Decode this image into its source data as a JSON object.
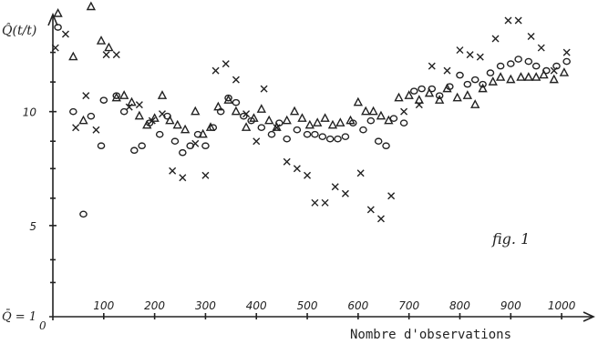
{
  "chart_data": {
    "type": "scatter",
    "ylabel": "Q̂(t/t)",
    "xlabel": "Nombre d'observations",
    "annotation": "fig. 1",
    "origin_label": "0",
    "ybase_label": "Q̄ = 1",
    "xlim": [
      0,
      1050
    ],
    "ylim": [
      1,
      14.5
    ],
    "x_ticks": [
      100,
      200,
      300,
      400,
      500,
      600,
      700,
      800,
      900,
      1000
    ],
    "x_tick_labels": [
      "100",
      "200",
      "300",
      "400",
      "500",
      "600",
      "700",
      "800",
      "900",
      "1000"
    ],
    "y_ticks": [
      5,
      10
    ],
    "y_tick_labels": [
      "5",
      "10"
    ],
    "grid": false,
    "legend": "none",
    "series": [
      {
        "marker": "circle",
        "points": [
          [
            10,
            13.7
          ],
          [
            40,
            10.0
          ],
          [
            60,
            5.5
          ],
          [
            75,
            9.8
          ],
          [
            95,
            8.5
          ],
          [
            100,
            10.5
          ],
          [
            125,
            10.7
          ],
          [
            140,
            10.0
          ],
          [
            160,
            8.3
          ],
          [
            175,
            8.5
          ],
          [
            190,
            9.5
          ],
          [
            210,
            9.0
          ],
          [
            225,
            9.8
          ],
          [
            240,
            8.7
          ],
          [
            255,
            8.2
          ],
          [
            270,
            8.5
          ],
          [
            285,
            9.0
          ],
          [
            300,
            8.5
          ],
          [
            315,
            9.3
          ],
          [
            330,
            10.0
          ],
          [
            345,
            10.6
          ],
          [
            360,
            10.4
          ],
          [
            375,
            9.8
          ],
          [
            390,
            9.6
          ],
          [
            410,
            9.3
          ],
          [
            430,
            9.0
          ],
          [
            445,
            9.5
          ],
          [
            460,
            8.8
          ],
          [
            480,
            9.2
          ],
          [
            500,
            9.0
          ],
          [
            515,
            9.0
          ],
          [
            530,
            8.9
          ],
          [
            545,
            8.8
          ],
          [
            560,
            8.8
          ],
          [
            575,
            8.9
          ],
          [
            590,
            9.5
          ],
          [
            610,
            9.2
          ],
          [
            625,
            9.6
          ],
          [
            640,
            8.7
          ],
          [
            655,
            8.5
          ],
          [
            670,
            9.7
          ],
          [
            690,
            9.5
          ],
          [
            710,
            10.9
          ],
          [
            725,
            11.0
          ],
          [
            745,
            11.0
          ],
          [
            760,
            10.7
          ],
          [
            780,
            11.1
          ],
          [
            800,
            11.6
          ],
          [
            815,
            11.2
          ],
          [
            830,
            11.4
          ],
          [
            845,
            11.2
          ],
          [
            860,
            11.7
          ],
          [
            880,
            12.0
          ],
          [
            900,
            12.1
          ],
          [
            915,
            12.3
          ],
          [
            935,
            12.2
          ],
          [
            950,
            12.0
          ],
          [
            970,
            11.8
          ],
          [
            990,
            12.0
          ],
          [
            1010,
            12.2
          ]
        ]
      },
      {
        "marker": "triangle",
        "points": [
          [
            10,
            14.3
          ],
          [
            40,
            12.4
          ],
          [
            60,
            9.6
          ],
          [
            75,
            14.6
          ],
          [
            95,
            13.1
          ],
          [
            110,
            12.8
          ],
          [
            125,
            10.6
          ],
          [
            140,
            10.7
          ],
          [
            155,
            10.4
          ],
          [
            170,
            9.8
          ],
          [
            185,
            9.4
          ],
          [
            200,
            9.7
          ],
          [
            215,
            10.7
          ],
          [
            230,
            9.6
          ],
          [
            245,
            9.4
          ],
          [
            260,
            9.2
          ],
          [
            280,
            10.0
          ],
          [
            295,
            9.0
          ],
          [
            310,
            9.3
          ],
          [
            325,
            10.2
          ],
          [
            345,
            10.5
          ],
          [
            360,
            10.0
          ],
          [
            380,
            9.3
          ],
          [
            395,
            9.7
          ],
          [
            410,
            10.1
          ],
          [
            425,
            9.6
          ],
          [
            440,
            9.3
          ],
          [
            460,
            9.6
          ],
          [
            475,
            10.0
          ],
          [
            490,
            9.7
          ],
          [
            505,
            9.4
          ],
          [
            520,
            9.5
          ],
          [
            535,
            9.7
          ],
          [
            550,
            9.4
          ],
          [
            565,
            9.5
          ],
          [
            585,
            9.6
          ],
          [
            600,
            10.4
          ],
          [
            615,
            10.0
          ],
          [
            630,
            10.0
          ],
          [
            645,
            9.8
          ],
          [
            660,
            9.6
          ],
          [
            680,
            10.6
          ],
          [
            700,
            10.7
          ],
          [
            720,
            10.5
          ],
          [
            740,
            10.8
          ],
          [
            760,
            10.5
          ],
          [
            775,
            11.0
          ],
          [
            795,
            10.6
          ],
          [
            815,
            10.7
          ],
          [
            830,
            10.3
          ],
          [
            845,
            11.0
          ],
          [
            865,
            11.3
          ],
          [
            880,
            11.5
          ],
          [
            900,
            11.4
          ],
          [
            920,
            11.5
          ],
          [
            935,
            11.5
          ],
          [
            950,
            11.5
          ],
          [
            965,
            11.6
          ],
          [
            985,
            11.4
          ],
          [
            1005,
            11.7
          ]
        ]
      },
      {
        "marker": "cross",
        "points": [
          [
            5,
            12.8
          ],
          [
            25,
            13.4
          ],
          [
            45,
            9.3
          ],
          [
            65,
            10.7
          ],
          [
            85,
            9.2
          ],
          [
            105,
            12.5
          ],
          [
            125,
            12.5
          ],
          [
            150,
            10.2
          ],
          [
            170,
            10.3
          ],
          [
            195,
            9.6
          ],
          [
            215,
            9.9
          ],
          [
            235,
            7.4
          ],
          [
            255,
            7.1
          ],
          [
            280,
            8.6
          ],
          [
            300,
            7.2
          ],
          [
            320,
            11.8
          ],
          [
            340,
            12.1
          ],
          [
            360,
            11.4
          ],
          [
            380,
            9.9
          ],
          [
            400,
            8.7
          ],
          [
            415,
            11.0
          ],
          [
            440,
            9.3
          ],
          [
            460,
            7.8
          ],
          [
            480,
            7.5
          ],
          [
            500,
            7.2
          ],
          [
            515,
            6.0
          ],
          [
            535,
            6.0
          ],
          [
            555,
            6.7
          ],
          [
            575,
            6.4
          ],
          [
            605,
            7.3
          ],
          [
            625,
            5.7
          ],
          [
            645,
            5.3
          ],
          [
            665,
            6.3
          ],
          [
            690,
            10.0
          ],
          [
            720,
            10.3
          ],
          [
            745,
            12.0
          ],
          [
            775,
            11.8
          ],
          [
            800,
            12.7
          ],
          [
            820,
            12.5
          ],
          [
            840,
            12.4
          ],
          [
            870,
            13.2
          ],
          [
            895,
            14.0
          ],
          [
            915,
            14.0
          ],
          [
            940,
            13.3
          ],
          [
            960,
            12.8
          ],
          [
            985,
            11.8
          ],
          [
            1010,
            12.6
          ]
        ]
      }
    ]
  }
}
